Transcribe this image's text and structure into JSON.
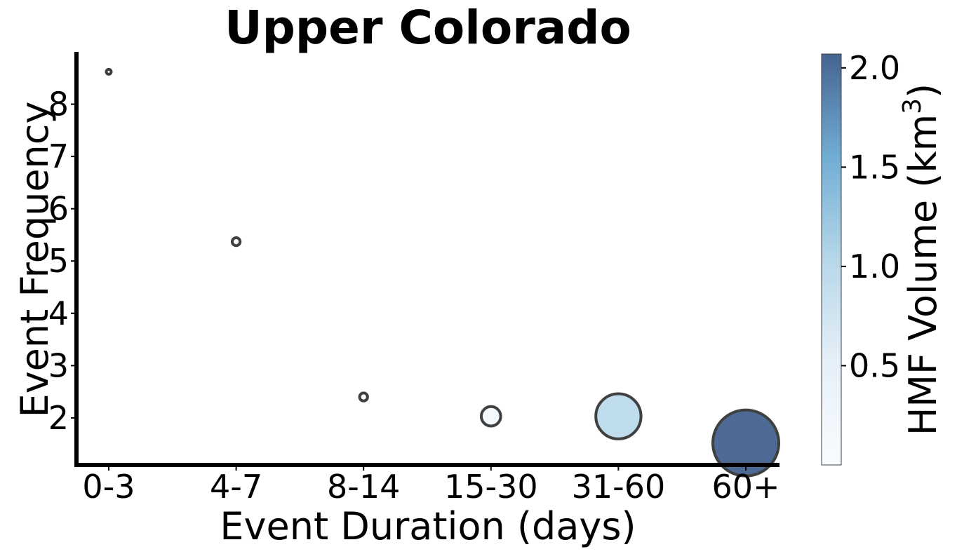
{
  "chart_data": {
    "type": "scatter",
    "title": "Upper Colorado",
    "xlabel": "Event Duration (days)",
    "ylabel": "Event Frequency",
    "categories": [
      "0-3",
      "4-7",
      "8-14",
      "15-30",
      "31-60",
      "60+"
    ],
    "frequency": [
      8.62,
      5.37,
      2.4,
      2.03,
      2.03,
      1.52
    ],
    "hmf_volume_km3": [
      0.01,
      0.03,
      0.03,
      0.18,
      0.97,
      2.07
    ],
    "ylim": [
      1.1,
      9.0
    ],
    "yticks": [
      2,
      3,
      4,
      5,
      6,
      7,
      8
    ],
    "colorbar": {
      "label": "HMF Volume (km",
      "label_superscript": "3",
      "label_suffix": ")",
      "range": [
        0.0,
        2.07
      ],
      "ticks": [
        0.5,
        1.0,
        1.5,
        2.0
      ],
      "tick_labels": [
        "0.5",
        "1.0",
        "1.5",
        "2.0"
      ],
      "colors": [
        "#f7fbff",
        "#deebf7",
        "#9ecae1",
        "#4292c6",
        "#08306b"
      ]
    },
    "marker_edge_color": "#404040",
    "grid": false
  }
}
